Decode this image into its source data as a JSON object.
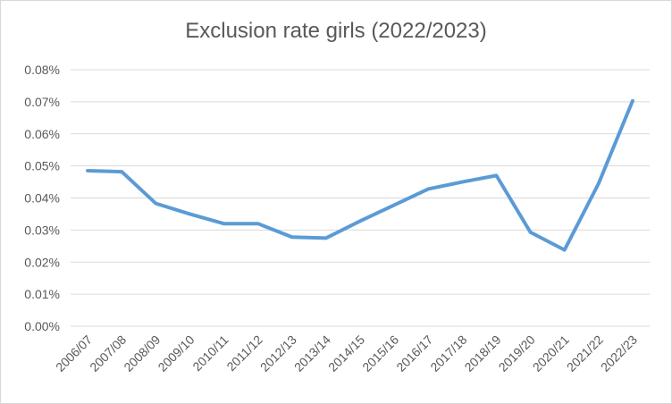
{
  "chart_data": {
    "type": "line",
    "title": "Exclusion rate girls (2022/2023)",
    "xlabel": "",
    "ylabel": "",
    "ylim": [
      0,
      0.08
    ],
    "yticks": [
      "0.00%",
      "0.01%",
      "0.02%",
      "0.03%",
      "0.04%",
      "0.05%",
      "0.06%",
      "0.07%",
      "0.08%"
    ],
    "grid": true,
    "legend": "none",
    "line_color": "#5b9bd5",
    "categories": [
      "2006/07",
      "2007/08",
      "2008/09",
      "2009/10",
      "2010/11",
      "2011/12",
      "2012/13",
      "2013/14",
      "2014/15",
      "2015/16",
      "2016/17",
      "2017/18",
      "2018/19",
      "2019/20",
      "2020/21",
      "2021/22",
      "2022/23"
    ],
    "series": [
      {
        "values": [
          0.0485,
          0.0482,
          0.0383,
          0.035,
          0.032,
          0.032,
          0.0278,
          0.0275,
          0.0328,
          0.0378,
          0.0428,
          0.045,
          0.047,
          0.0293,
          0.0238,
          0.0445,
          0.0703
        ]
      }
    ]
  }
}
